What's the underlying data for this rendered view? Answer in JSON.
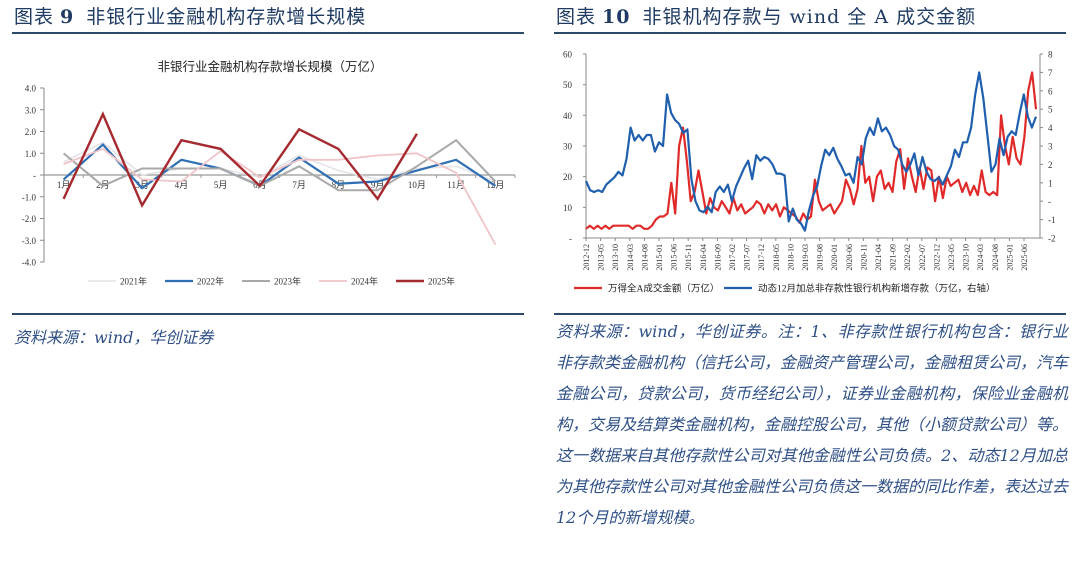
{
  "figures": [
    {
      "label": "图表",
      "number": "9",
      "title": "非银行业金融机构存款增长规模",
      "source": "资料来源：wind，华创证券"
    },
    {
      "label": "图表",
      "number": "10",
      "title": "非银机构存款与 wind 全 A 成交金额",
      "source": "资料来源：wind，华创证券。注：1、非存款性银行机构包含：银行业非存款类金融机构（信托公司，金融资产管理公司，金融租赁公司，汽车金融公司，贷款公司，货币经纪公司），证券业金融机构，保险业金融机构，交易及结算类金融机构，金融控股公司，其他（小额贷款公司）等。这一数据来自其他存款性公司对其他金融性公司负债。2、动态12月加总为其他存款性公司对其他金融性公司负债这一数据的同比作差，表达过去12个月的新增规模。"
    }
  ],
  "chart_data": [
    {
      "type": "line",
      "title": "非银行业金融机构存款增长规模（万亿）",
      "xlabel": "",
      "ylabel": "",
      "ylim": [
        -4.0,
        4.0
      ],
      "yticks": [
        "4.0",
        "3.0",
        "2.0",
        "1.0",
        "-",
        "-1.0",
        "-2.0",
        "-3.0",
        "-4.0"
      ],
      "categories": [
        "1月",
        "2月",
        "3月",
        "4月",
        "5月",
        "6月",
        "7月",
        "8月",
        "9月",
        "10月",
        "11月",
        "12月"
      ],
      "legend_position": "bottom",
      "grid": false,
      "series": [
        {
          "name": "2021年",
          "color": "#e3e3e8",
          "width": 1.6,
          "values": [
            0.6,
            1.5,
            0.0,
            0.3,
            0.3,
            -0.1,
            0.9,
            0.2,
            -0.2,
            0.3,
            0.4,
            -0.3
          ]
        },
        {
          "name": "2022年",
          "color": "#2f6fb3",
          "width": 2.2,
          "values": [
            -0.2,
            1.4,
            -0.6,
            0.7,
            0.3,
            -0.5,
            0.8,
            -0.4,
            -0.3,
            0.2,
            0.7,
            -0.5
          ]
        },
        {
          "name": "2023年",
          "color": "#a9a9a9",
          "width": 2.0,
          "values": [
            1.0,
            -0.5,
            0.3,
            0.3,
            0.3,
            -0.5,
            0.4,
            -0.7,
            -0.7,
            0.4,
            1.6,
            -0.3
          ]
        },
        {
          "name": "2024年",
          "color": "#f0c4c8",
          "width": 1.8,
          "values": [
            0.5,
            1.2,
            -0.2,
            -0.3,
            1.1,
            -0.1,
            0.7,
            0.7,
            0.9,
            1.0,
            0.1,
            -3.2
          ]
        },
        {
          "name": "2025年",
          "color": "#a52a2f",
          "width": 2.4,
          "values": [
            -1.1,
            2.8,
            -1.4,
            1.6,
            1.2,
            -0.5,
            2.1,
            1.2,
            -1.1,
            1.9,
            null,
            null
          ]
        }
      ]
    },
    {
      "type": "line",
      "title": "",
      "ylim": [
        0,
        60
      ],
      "ylim_right": [
        -2,
        8
      ],
      "yticks_left": [
        "60",
        "50",
        "40",
        "30",
        "20",
        "10",
        "-"
      ],
      "yticks_right": [
        "8",
        "7",
        "6",
        "5",
        "4",
        "3",
        "2",
        "1",
        "-",
        "-1",
        "-2"
      ],
      "x_tick_labels": [
        "2012-12",
        "2013-05",
        "2013-10",
        "2014-03",
        "2014-08",
        "2015-01",
        "2015-06",
        "2015-11",
        "2016-04",
        "2016-09",
        "2017-02",
        "2017-07",
        "2017-12",
        "2018-05",
        "2018-10",
        "2019-03",
        "2019-08",
        "2020-01",
        "2020-06",
        "2020-11",
        "2021-04",
        "2021-09",
        "2022-02",
        "2022-07",
        "2022-12",
        "2023-05",
        "2023-10",
        "2024-03",
        "2024-08",
        "2025-01",
        "2025-06"
      ],
      "legend_position": "bottom",
      "series": [
        {
          "name": "万得全A成交金额（万亿）",
          "axis": "left",
          "color": "#e02a2a",
          "values": [
            3,
            4,
            3,
            4,
            3,
            4,
            3,
            4,
            4,
            4,
            4,
            4,
            3,
            4,
            4,
            3,
            3,
            4,
            6,
            7,
            7,
            8,
            18,
            8,
            30,
            36,
            25,
            12,
            15,
            22,
            15,
            8,
            13,
            10,
            9,
            12,
            10,
            8,
            13,
            9,
            11,
            8,
            9,
            10,
            12,
            11,
            8,
            11,
            9,
            11,
            7,
            10,
            9,
            8,
            7,
            5,
            8,
            6,
            7,
            19,
            12,
            9,
            10,
            11,
            8,
            10,
            12,
            19,
            16,
            11,
            16,
            30,
            18,
            20,
            12,
            20,
            22,
            16,
            18,
            15,
            25,
            29,
            16,
            26,
            20,
            15,
            23,
            16,
            23,
            22,
            12,
            20,
            13,
            20,
            17,
            18,
            19,
            15,
            18,
            14,
            17,
            14,
            22,
            15,
            14,
            15,
            14,
            40,
            30,
            24,
            33,
            26,
            24,
            33,
            48,
            54,
            42
          ]
        },
        {
          "name": "动态12月加总非存款性银行机构新增存款（万亿，右轴）",
          "axis": "right",
          "color": "#1f5fae",
          "values": [
            1.1,
            0.6,
            0.5,
            0.6,
            0.5,
            0.9,
            1.1,
            1.3,
            1.6,
            1.4,
            2.3,
            4.0,
            3.3,
            3.6,
            3.3,
            3.6,
            3.6,
            2.7,
            3.2,
            3.0,
            5.8,
            4.8,
            4.4,
            4.2,
            3.7,
            3.9,
            1.2,
            0.0,
            -0.5,
            -0.6,
            -0.3,
            -0.6,
            0.5,
            0.8,
            0.5,
            0.9,
            0.0,
            0.8,
            1.3,
            1.8,
            2.2,
            1.2,
            2.5,
            2.2,
            2.4,
            2.3,
            2.0,
            1.5,
            1.5,
            1.4,
            -1.1,
            -0.4,
            -1.0,
            -1.2,
            -1.6,
            -0.5,
            0.3,
            0.8,
            1.9,
            2.8,
            2.5,
            2.9,
            2.3,
            1.9,
            1.4,
            1.5,
            1.0,
            2.4,
            2.0,
            3.4,
            4.0,
            3.6,
            4.5,
            3.8,
            4.0,
            3.6,
            3.0,
            2.8,
            2.0,
            1.6,
            2.0,
            2.6,
            1.4,
            2.4,
            1.6,
            1.2,
            1.1,
            1.3,
            0.9,
            1.4,
            1.9,
            2.8,
            2.4,
            3.2,
            3.2,
            4.0,
            5.8,
            7.0,
            5.6,
            3.6,
            1.6,
            2.0,
            3.4,
            2.5,
            3.5,
            3.8,
            3.6,
            4.8,
            5.8,
            4.6,
            4.0,
            4.6
          ]
        }
      ]
    }
  ]
}
